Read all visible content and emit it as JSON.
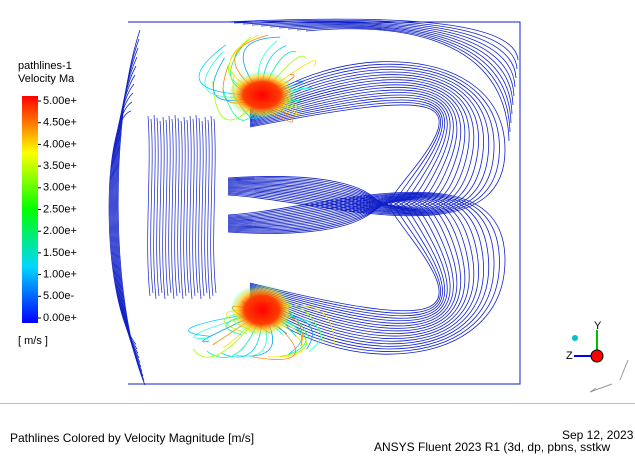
{
  "legend": {
    "title": "pathlines-1",
    "subtitle": "Velocity Ma",
    "labels": [
      "5.00e+",
      "4.50e+",
      "4.00e+",
      "3.50e+",
      "3.00e+",
      "2.50e+",
      "2.00e+",
      "1.50e+",
      "1.00e+",
      "5.00e-",
      "0.00e+"
    ],
    "unit": "[ m/s ]"
  },
  "footer": {
    "caption": "Pathlines Colored by Velocity Magnitude [m/s]",
    "date": "Sep 12, 2023",
    "version": "ANSYS Fluent 2023 R1 (3d, dp, pbns, sstkw"
  }
}
